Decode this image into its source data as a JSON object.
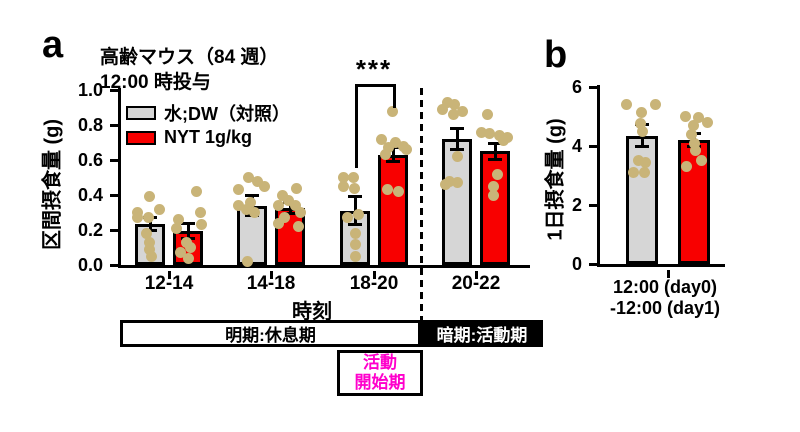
{
  "panel_labels": {
    "a": "a",
    "b": "b"
  },
  "colors": {
    "dw_bar": "#D6D6D6",
    "nyt_bar": "#F80000",
    "dot": "#C9B478",
    "onset_text": "#FF00CC",
    "axis": "#000000"
  },
  "panel_a": {
    "title_line1": "高齢マウス（84 週）",
    "title_line2": "12:00 時投与",
    "ylabel": "区間摂食量 (g)",
    "xlabel": "時刻",
    "significance_label": "***"
  },
  "panel_b": {
    "ylabel": "1日摂食量 (g)",
    "xlabel_line1": "12:00 (day0)",
    "xlabel_line2": "-12:00 (day1)"
  },
  "legend": [
    {
      "label": "水;DW（対照）",
      "color": "#D6D6D6"
    },
    {
      "label": "NYT 1g/kg",
      "color": "#F80000"
    }
  ],
  "timeline": {
    "light_label": "明期:休息期",
    "dark_label": "暗期:活動期",
    "onset_line1": "活動",
    "onset_line2": "開始期"
  },
  "chart_data": [
    {
      "id": "a",
      "type": "bar",
      "title": "高齢マウス（84 週） 12:00 時投与",
      "xlabel": "時刻",
      "ylabel": "区間摂食量 (g)",
      "ylim": [
        0,
        1.0
      ],
      "ytick_step": 0.2,
      "categories": [
        "12-14",
        "14-18",
        "18-20",
        "20-22"
      ],
      "series": [
        {
          "name": "水;DW（対照）",
          "color": "#D6D6D6",
          "means": [
            0.235,
            0.34,
            0.31,
            0.72
          ],
          "sem": [
            0.035,
            0.055,
            0.08,
            0.06
          ],
          "points": [
            [
              [
                -1,
                0.39
              ],
              [
                9,
                0.32
              ],
              [
                -13,
                0.3
              ],
              [
                -13,
                0.27
              ],
              [
                -2,
                0.27
              ],
              [
                -4,
                0.18
              ],
              [
                -1,
                0.13
              ],
              [
                -1,
                0.09
              ],
              [
                1,
                0.05
              ]
            ],
            [
              [
                -4,
                0.5
              ],
              [
                5,
                0.48
              ],
              [
                12,
                0.45
              ],
              [
                -14,
                0.43
              ],
              [
                -2,
                0.36
              ],
              [
                -14,
                0.34
              ],
              [
                -6,
                0.32
              ],
              [
                2,
                0.3
              ],
              [
                -5,
                0.02
              ]
            ],
            [
              [
                -12,
                0.5
              ],
              [
                -2,
                0.5
              ],
              [
                -12,
                0.45
              ],
              [
                -1,
                0.44
              ],
              [
                3,
                0.29
              ],
              [
                -8,
                0.27
              ],
              [
                0,
                0.18
              ],
              [
                0,
                0.12
              ],
              [
                0,
                0.05
              ]
            ],
            [
              [
                -10,
                0.93
              ],
              [
                -3,
                0.92
              ],
              [
                -15,
                0.89
              ],
              [
                5,
                0.88
              ],
              [
                -4,
                0.86
              ],
              [
                0,
                0.62
              ],
              [
                -8,
                0.48
              ],
              [
                0,
                0.47
              ],
              [
                -12,
                0.46
              ]
            ]
          ]
        },
        {
          "name": "NYT 1g/kg",
          "color": "#F80000",
          "means": [
            0.195,
            0.325,
            0.63,
            0.65
          ],
          "sem": [
            0.045,
            0.03,
            0.04,
            0.045
          ],
          "points": [
            [
              [
                8,
                0.42
              ],
              [
                12,
                0.3
              ],
              [
                -10,
                0.26
              ],
              [
                13,
                0.23
              ],
              [
                -12,
                0.21
              ],
              [
                -2,
                0.13
              ],
              [
                2,
                0.1
              ],
              [
                -8,
                0.07
              ],
              [
                0,
                0.04
              ]
            ],
            [
              [
                6,
                0.44
              ],
              [
                -8,
                0.4
              ],
              [
                -2,
                0.37
              ],
              [
                5,
                0.34
              ],
              [
                -12,
                0.34
              ],
              [
                10,
                0.3
              ],
              [
                -6,
                0.27
              ],
              [
                -12,
                0.24
              ],
              [
                8,
                0.22
              ]
            ],
            [
              [
                -1,
                0.88
              ],
              [
                -12,
                0.72
              ],
              [
                2,
                0.7
              ],
              [
                10,
                0.68
              ],
              [
                -5,
                0.67
              ],
              [
                13,
                0.66
              ],
              [
                -8,
                0.63
              ],
              [
                -6,
                0.43
              ],
              [
                5,
                0.42
              ]
            ],
            [
              [
                -8,
                0.86
              ],
              [
                -14,
                0.76
              ],
              [
                -6,
                0.75
              ],
              [
                4,
                0.74
              ],
              [
                12,
                0.73
              ],
              [
                8,
                0.71
              ],
              [
                2,
                0.52
              ],
              [
                -2,
                0.45
              ],
              [
                -2,
                0.4
              ]
            ]
          ]
        }
      ],
      "significance": {
        "label": "***",
        "category": "18-20",
        "between": [
          "水;DW（対照）",
          "NYT 1g/kg"
        ]
      },
      "divider_after_category": "18-20",
      "period_bands": {
        "light": "明期:休息期 (12-20)",
        "dark": "暗期:活動期 (20-22)",
        "onset": "活動開始期 (18-20)"
      }
    },
    {
      "id": "b",
      "type": "bar",
      "xlabel": "12:00 (day0) -12:00 (day1)",
      "ylabel": "1日摂食量 (g)",
      "ylim": [
        0,
        6
      ],
      "ytick_step": 2,
      "categories": [
        "12:00 (day0) -12:00 (day1)"
      ],
      "series": [
        {
          "name": "水;DW（対照）",
          "color": "#D6D6D6",
          "means": [
            4.35
          ],
          "sem": [
            0.37
          ],
          "points": [
            [
              [
                -16,
                5.4
              ],
              [
                -1,
                5.15
              ],
              [
                13,
                5.4
              ],
              [
                -2,
                4.75
              ],
              [
                0,
                4.5
              ],
              [
                -4,
                3.5
              ],
              [
                3,
                3.45
              ],
              [
                -9,
                3.1
              ],
              [
                2,
                3.1
              ]
            ]
          ]
        },
        {
          "name": "NYT 1g/kg",
          "color": "#F80000",
          "means": [
            4.2
          ],
          "sem": [
            0.22
          ],
          "points": [
            [
              [
                -9,
                5.0
              ],
              [
                4,
                4.95
              ],
              [
                13,
                4.8
              ],
              [
                -1,
                4.7
              ],
              [
                -3,
                4.4
              ],
              [
                0,
                4.1
              ],
              [
                1,
                3.85
              ],
              [
                7,
                3.5
              ],
              [
                -8,
                3.3
              ]
            ]
          ]
        }
      ]
    }
  ]
}
